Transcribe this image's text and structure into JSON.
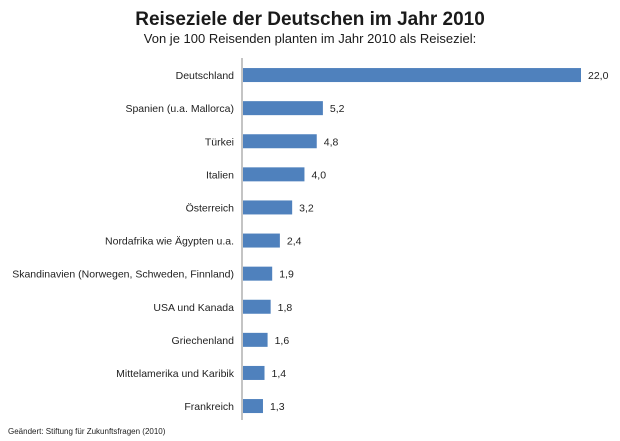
{
  "chart_data": {
    "type": "bar",
    "orientation": "horizontal",
    "title": "Reiseziele der Deutschen im Jahr 2010",
    "subtitle": "Von je 100 Reisenden planten im Jahr 2010 als Reiseziel:",
    "categories": [
      "Deutschland",
      "Spanien (u.a. Mallorca)",
      "Türkei",
      "Italien",
      "Österreich",
      "Nordafrika wie Ägypten u.a.",
      "Skandinavien (Norwegen, Schweden, Finnland)",
      "USA und Kanada",
      "Griechenland",
      "Mittelamerika und Karibik",
      "Frankreich"
    ],
    "values": [
      22.0,
      5.2,
      4.8,
      4.0,
      3.2,
      2.4,
      1.9,
      1.8,
      1.6,
      1.4,
      1.3
    ],
    "value_labels": [
      "22,0",
      "5,2",
      "4,8",
      "4,0",
      "3,2",
      "2,4",
      "1,9",
      "1,8",
      "1,6",
      "1,4",
      "1,3"
    ],
    "xlim": [
      0,
      22
    ],
    "grid": false,
    "legend": "none",
    "bar_color": "#4f81bd",
    "source": "Geändert: Stiftung für Zukunftsfragen (2010)"
  }
}
